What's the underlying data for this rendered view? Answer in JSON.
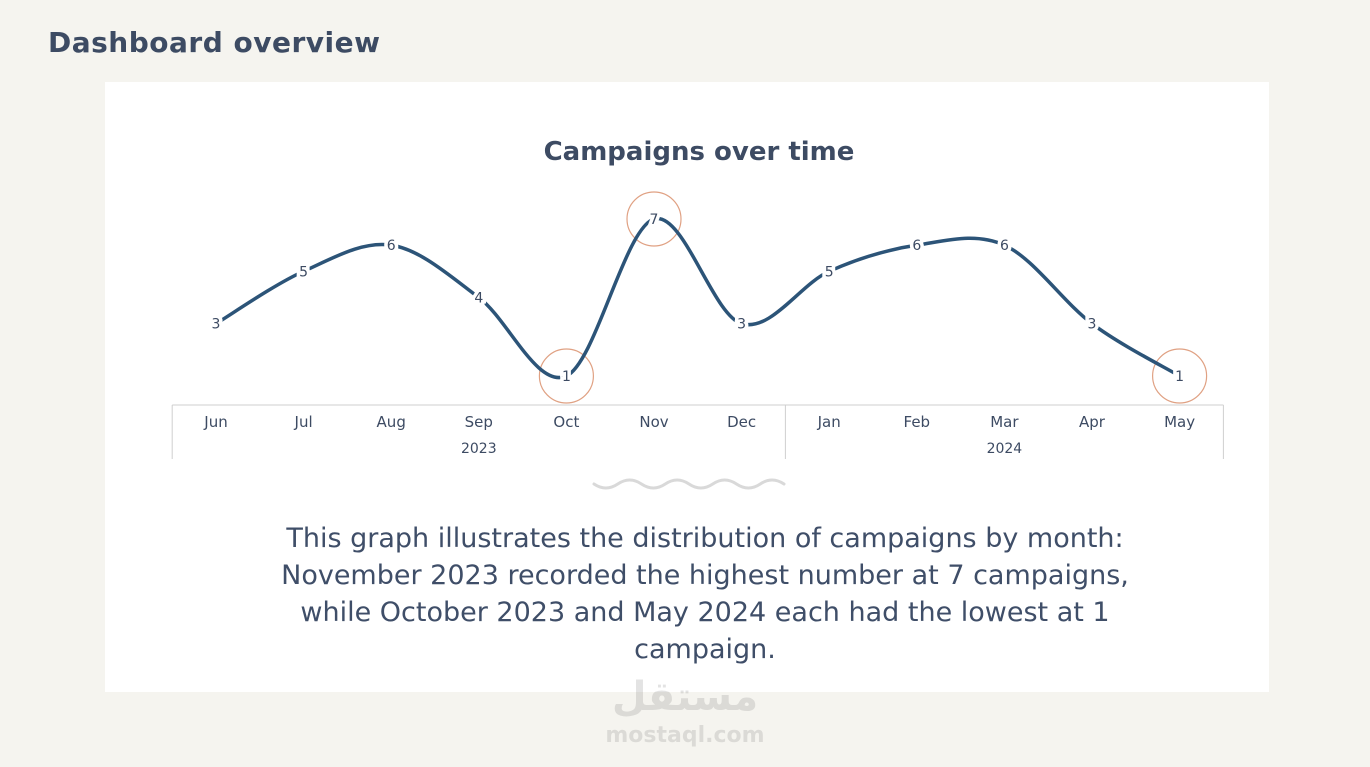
{
  "page": {
    "heading": "Dashboard overview"
  },
  "colors": {
    "line": "#2c5478",
    "highlight": "#e0a183",
    "text": "#3d4b63",
    "axis": "#cfcfcf",
    "wave": "#d9d9d9"
  },
  "chart_data": {
    "type": "line",
    "title": "Campaigns over time",
    "categories": [
      "Jun",
      "Jul",
      "Aug",
      "Sep",
      "Oct",
      "Nov",
      "Dec",
      "Jan",
      "Feb",
      "Mar",
      "Apr",
      "May"
    ],
    "year_groups": [
      {
        "label": "2023",
        "months": [
          "Jun",
          "Jul",
          "Aug",
          "Sep",
          "Oct",
          "Nov",
          "Dec"
        ]
      },
      {
        "label": "2024",
        "months": [
          "Jan",
          "Feb",
          "Mar",
          "Apr",
          "May"
        ]
      }
    ],
    "values": [
      3,
      5,
      6,
      4,
      1,
      7,
      3,
      5,
      6,
      6,
      3,
      1
    ],
    "highlighted": [
      "Oct",
      "Nov",
      "May"
    ],
    "smooth": true,
    "data_labels": true,
    "ylim": [
      1,
      7
    ],
    "grid": false,
    "legend": "none",
    "xlabel": "",
    "ylabel": ""
  },
  "description": "This graph illustrates the distribution of campaigns by month: November 2023 recorded the highest number at 7 campaigns, while October 2023 and May 2024 each had the lowest at 1 campaign.",
  "watermark": {
    "arabic": "مستقل",
    "latin": "mostaql.com"
  }
}
